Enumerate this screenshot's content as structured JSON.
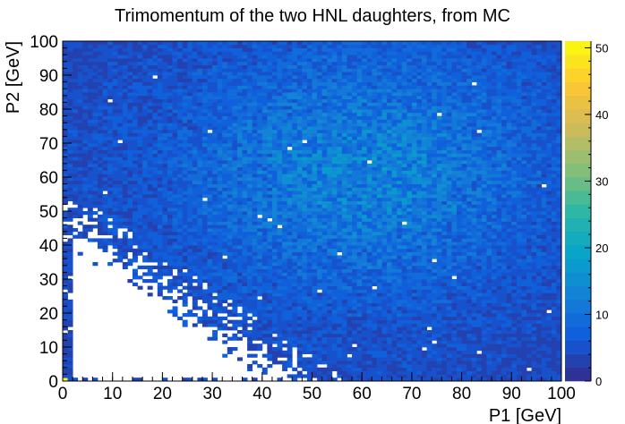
{
  "chart_data": {
    "type": "heatmap",
    "title": "Trimomentum of the two HNL daughters, from MC",
    "xlabel": "P1 [GeV]",
    "ylabel": "P2 [GeV]",
    "xlim": [
      0,
      100
    ],
    "ylim": [
      0,
      100
    ],
    "nbins_x": 100,
    "nbins_y": 100,
    "x_ticks": [
      0,
      10,
      20,
      30,
      40,
      50,
      60,
      70,
      80,
      90,
      100
    ],
    "y_ticks": [
      0,
      10,
      20,
      30,
      40,
      50,
      60,
      70,
      80,
      90,
      100
    ],
    "z_range": [
      0,
      51
    ],
    "z_ticks": [
      0,
      10,
      20,
      30,
      40,
      50
    ],
    "colormap": [
      "#352a87",
      "#0f5cdd",
      "#1481d6",
      "#06a4ca",
      "#2eb7a4",
      "#87bf77",
      "#d1bb59",
      "#fec832",
      "#f9fb0e"
    ],
    "background": "#ffffff",
    "description_of_density": "Counts are ~3-6 in most populated bins, peaking ~15-20 around P1≈50-70, P2≈50-70; a bright yellow bin (~51) at P1≈0,P2≈0; region below P1+P2≈45 (excluding thin edges) is empty"
  }
}
